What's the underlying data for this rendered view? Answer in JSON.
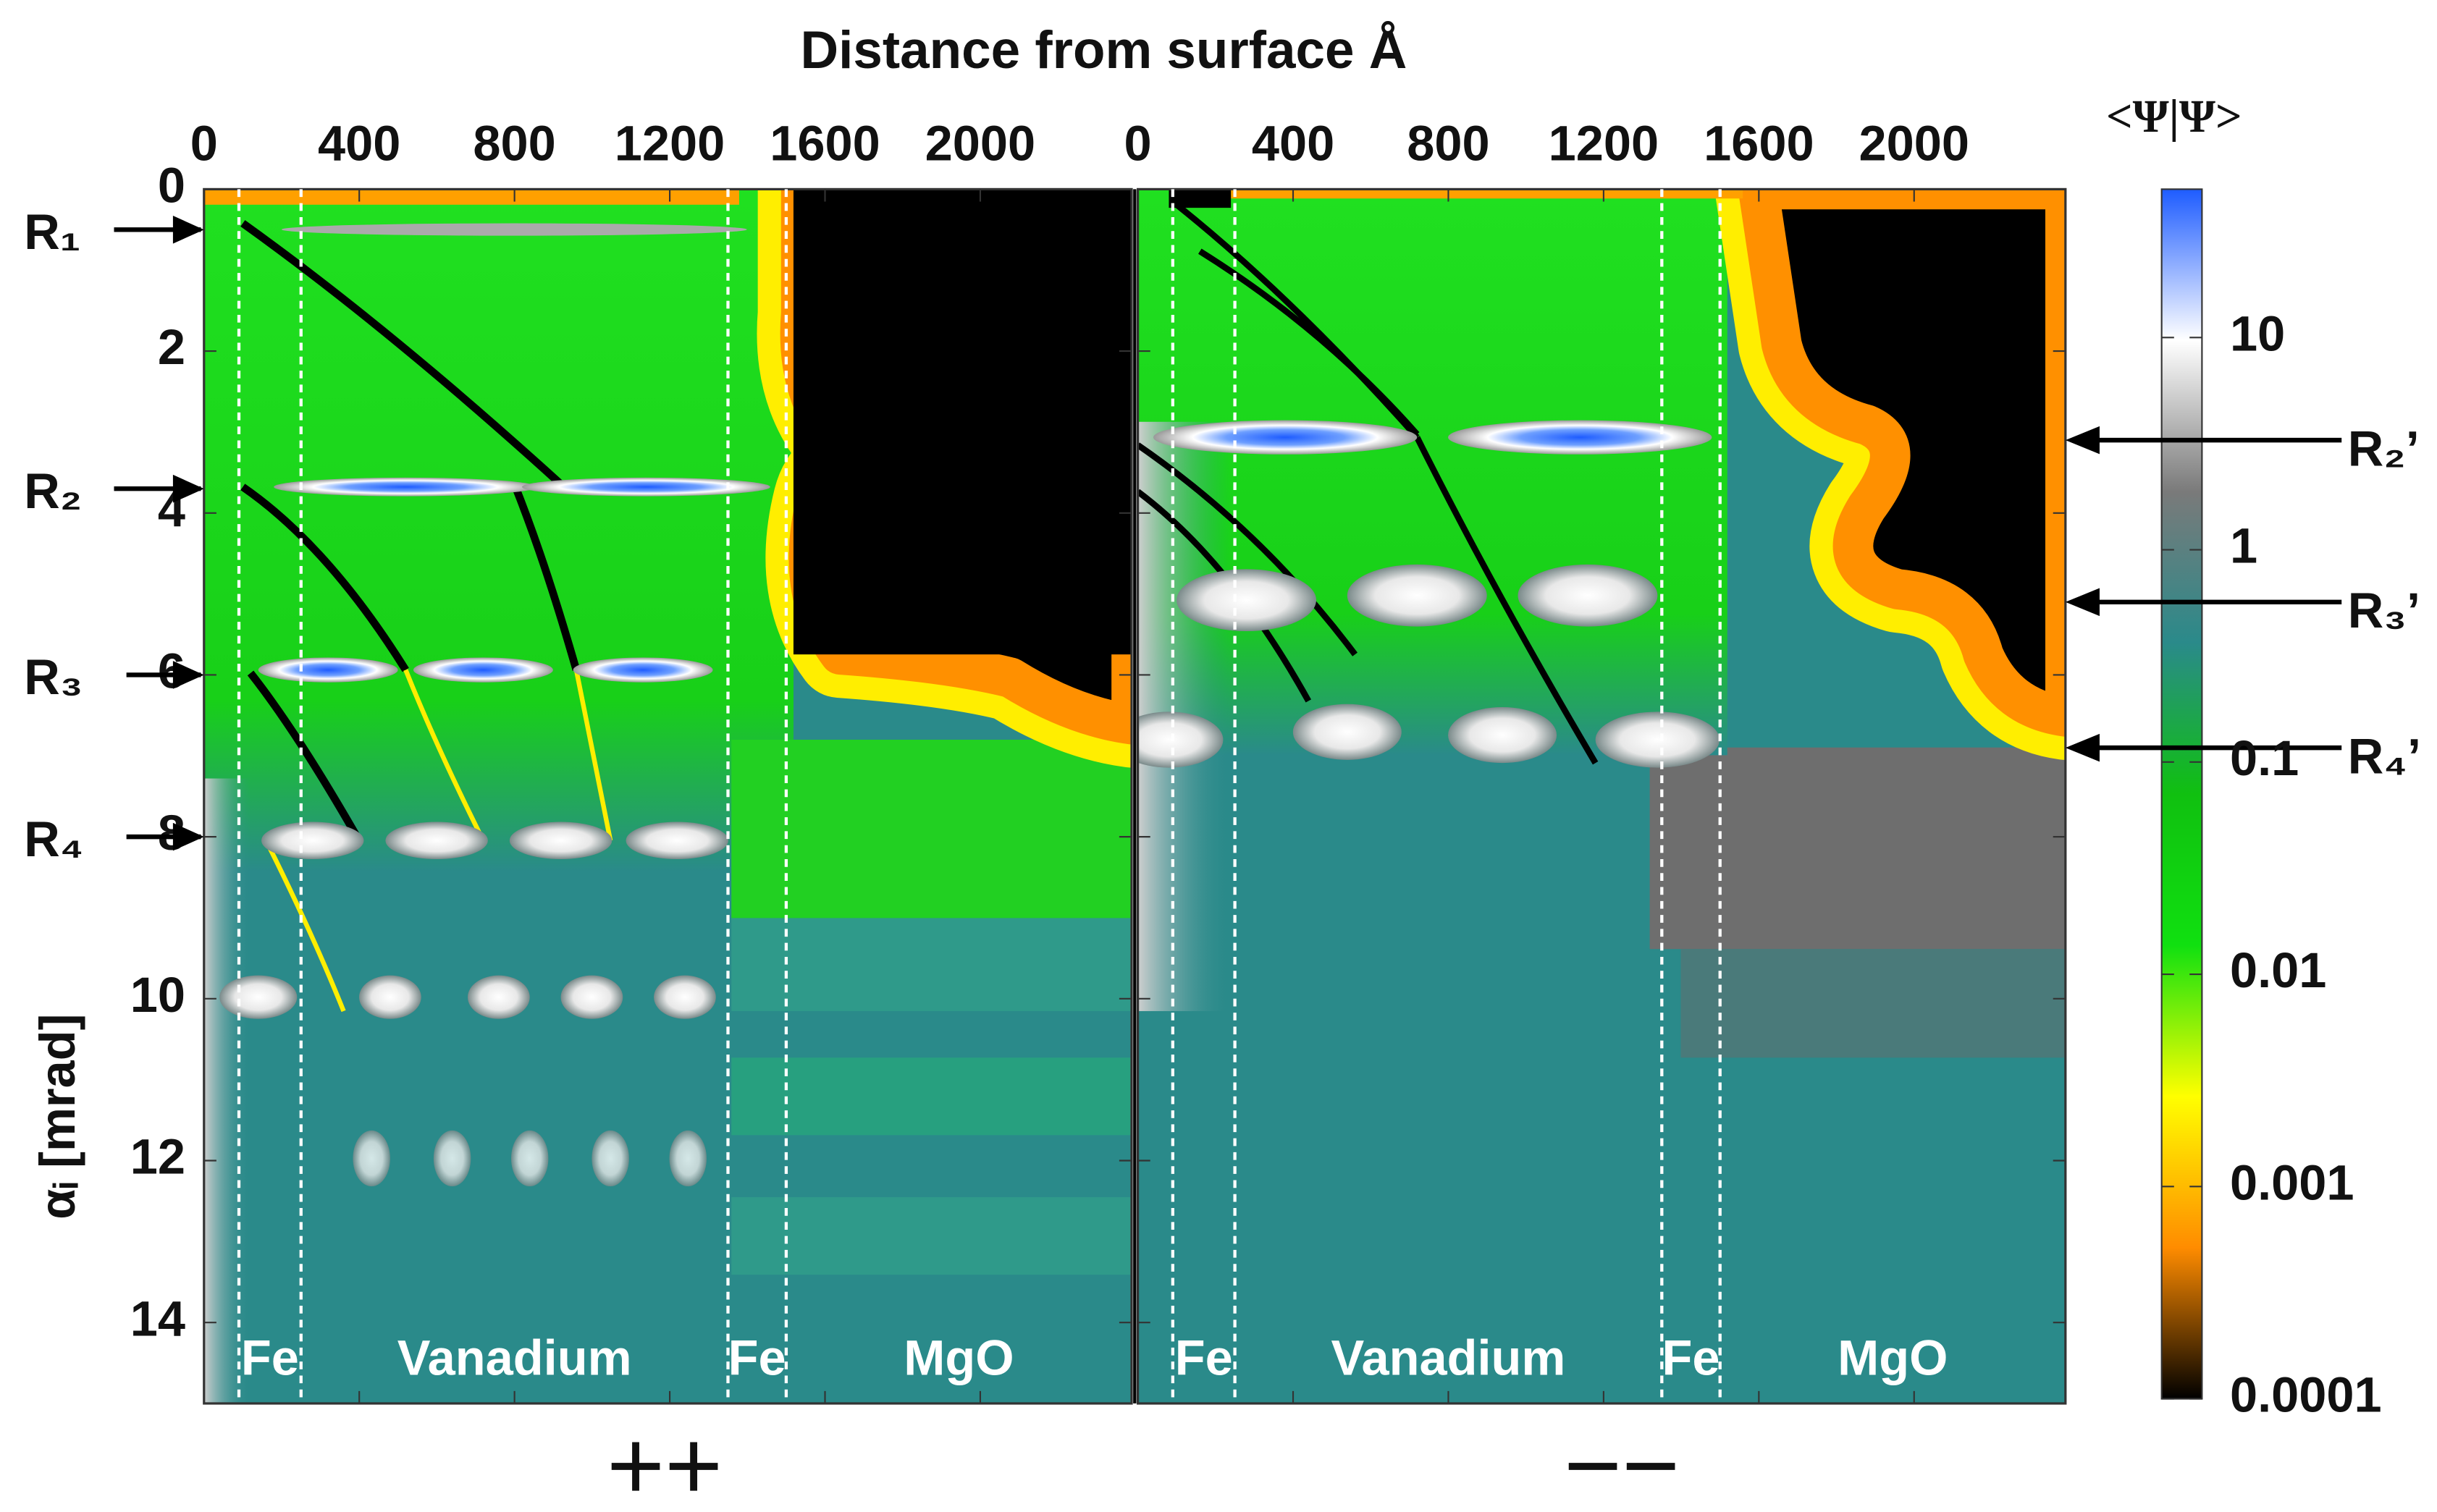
{
  "chart_data": {
    "type": "heatmap",
    "title": "Distance from surface Å",
    "y_label": "αᵢ [mrad]",
    "xlim": [
      0,
      2390
    ],
    "xticks": [
      0,
      400,
      800,
      1200,
      1600,
      2000
    ],
    "ylim": [
      0,
      15
    ],
    "yticks": [
      0,
      2,
      4,
      6,
      8,
      10,
      12,
      14
    ],
    "layer_names": [
      "Fe",
      "Vanadium",
      "Fe",
      "MgO"
    ],
    "layer_boundaries": [
      90,
      250,
      1350,
      1500
    ],
    "panels": [
      {
        "label": "++",
        "resonance_side": "left",
        "resonances": [
          {
            "label": "R₁",
            "value": 0.5
          },
          {
            "label": "R₂",
            "value": 3.7
          },
          {
            "label": "R₃",
            "value": 6.0
          },
          {
            "label": "R₄",
            "value": 8.0
          }
        ]
      },
      {
        "label": "−−",
        "resonance_side": "right",
        "resonances": [
          {
            "label": "R₂’",
            "value": 3.1
          },
          {
            "label": "R₃’",
            "value": 5.1
          },
          {
            "label": "R₄’",
            "value": 6.9
          }
        ]
      }
    ],
    "colorbar": {
      "label": "<Ψ|Ψ>",
      "scale": "log",
      "lim": [
        0.0001,
        50
      ],
      "ticks": [
        10,
        1,
        0.1,
        0.01,
        0.001,
        0.0001
      ],
      "colors": [
        "#000000",
        "#ff8c00",
        "#ffff00",
        "#10e010",
        "#10c010",
        "#2a8a8a",
        "#7a7a7a",
        "#ffffff",
        "#1e5cff"
      ]
    }
  }
}
